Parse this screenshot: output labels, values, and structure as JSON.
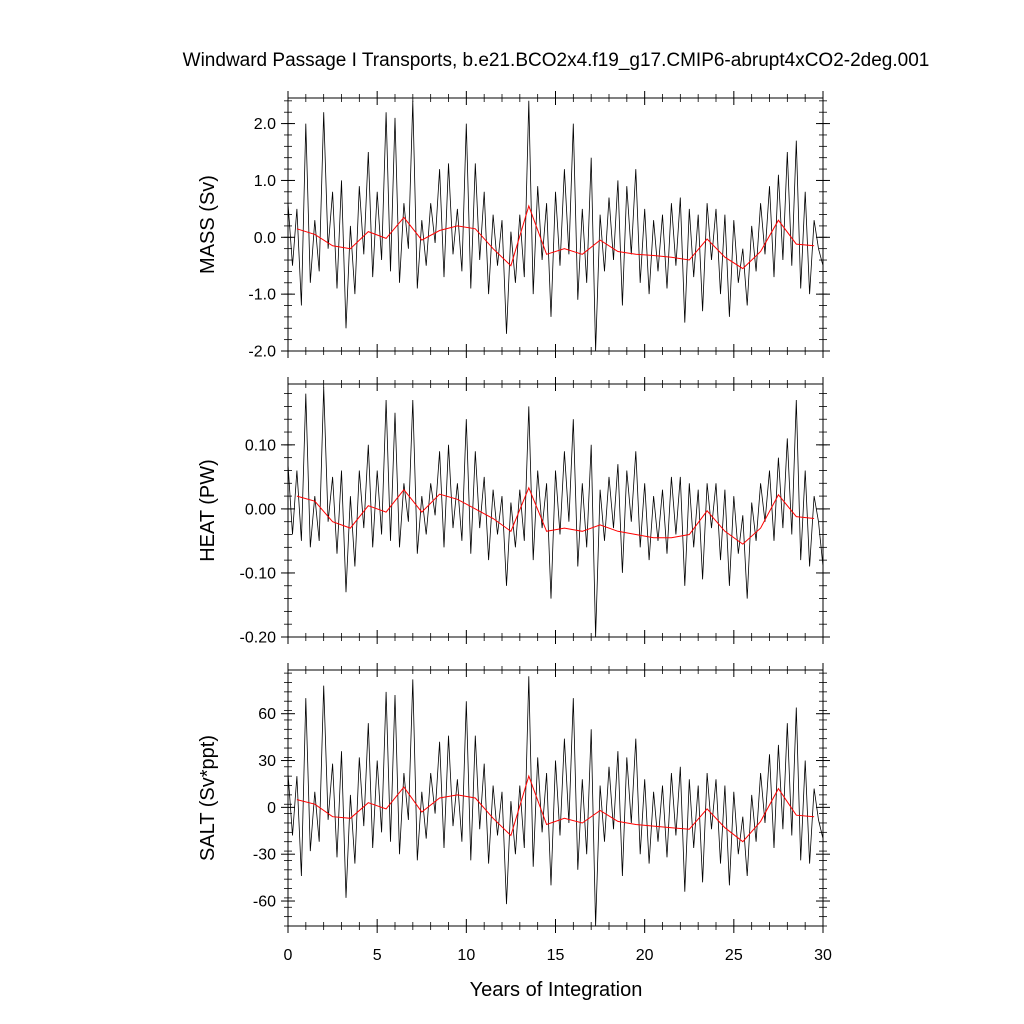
{
  "title": "Windward Passage I Transports, b.e21.BCO2x4.f19_g17.CMIP6-abrupt4xCO2-2deg.001",
  "xlabel": "Years of Integration",
  "colors": {
    "monthly": "#000000",
    "annual": "#ff0000",
    "frame": "#000000"
  },
  "chart_data": [
    {
      "type": "line",
      "ylabel": "MASS (Sv)",
      "xlim": [
        0,
        30
      ],
      "ylim": [
        -2.0,
        2.45
      ],
      "xticks": [
        0,
        5,
        10,
        15,
        20,
        25,
        30
      ],
      "xtick_labels": [
        "0",
        "5",
        "10",
        "15",
        "20",
        "25",
        "30"
      ],
      "yticks": [
        -2.0,
        -1.0,
        0.0,
        1.0,
        2.0
      ],
      "ytick_labels": [
        "-2.0",
        "-1.0",
        "0.0",
        "1.0",
        "2.0"
      ],
      "grid": false,
      "annual_x": [
        0.5,
        1.5,
        2.5,
        3.5,
        4.5,
        5.5,
        6.5,
        7.5,
        8.5,
        9.5,
        10.5,
        11.5,
        12.5,
        13.5,
        14.5,
        15.5,
        16.5,
        17.5,
        18.5,
        19.5,
        20.5,
        21.5,
        22.5,
        23.5,
        24.5,
        25.5,
        26.5,
        27.5,
        28.5,
        29.5
      ],
      "annual_y": [
        0.15,
        0.05,
        -0.15,
        -0.2,
        0.1,
        -0.02,
        0.35,
        -0.05,
        0.12,
        0.2,
        0.15,
        -0.2,
        -0.5,
        0.55,
        -0.3,
        -0.2,
        -0.3,
        -0.05,
        -0.25,
        -0.3,
        -0.32,
        -0.35,
        -0.4,
        -0.03,
        -0.35,
        -0.55,
        -0.25,
        0.3,
        -0.12,
        -0.15
      ],
      "monthly_x": [
        0.0,
        0.25,
        0.5,
        0.75,
        1.0,
        1.25,
        1.5,
        1.75,
        2.0,
        2.25,
        2.5,
        2.75,
        3.0,
        3.25,
        3.5,
        3.75,
        4.0,
        4.25,
        4.5,
        4.75,
        5.0,
        5.25,
        5.5,
        5.75,
        6.0,
        6.25,
        6.5,
        6.75,
        7.0,
        7.25,
        7.5,
        7.75,
        8.0,
        8.25,
        8.5,
        8.75,
        9.0,
        9.25,
        9.5,
        9.75,
        10.0,
        10.25,
        10.5,
        10.75,
        11.0,
        11.25,
        11.5,
        11.75,
        12.0,
        12.25,
        12.5,
        12.75,
        13.0,
        13.25,
        13.5,
        13.75,
        14.0,
        14.25,
        14.5,
        14.75,
        15.0,
        15.25,
        15.5,
        15.75,
        16.0,
        16.25,
        16.5,
        16.75,
        17.0,
        17.25,
        17.5,
        17.75,
        18.0,
        18.25,
        18.5,
        18.75,
        19.0,
        19.25,
        19.5,
        19.75,
        20.0,
        20.25,
        20.5,
        20.75,
        21.0,
        21.25,
        21.5,
        21.75,
        22.0,
        22.25,
        22.5,
        22.75,
        23.0,
        23.25,
        23.5,
        23.75,
        24.0,
        24.25,
        24.5,
        24.75,
        25.0,
        25.25,
        25.5,
        25.75,
        26.0,
        26.25,
        26.5,
        26.75,
        27.0,
        27.25,
        27.5,
        27.75,
        28.0,
        28.25,
        28.5,
        28.75,
        29.0,
        29.25,
        29.5,
        29.75,
        30.0
      ],
      "monthly_y": [
        0.6,
        -0.5,
        0.5,
        -1.2,
        2.0,
        -0.8,
        0.3,
        -0.6,
        2.2,
        -0.2,
        0.8,
        -0.9,
        1.0,
        -1.6,
        0.2,
        -1.0,
        0.9,
        -0.3,
        1.5,
        -0.7,
        0.8,
        -0.4,
        2.2,
        -0.6,
        2.1,
        -0.8,
        0.6,
        -0.2,
        2.4,
        -0.9,
        0.3,
        -0.5,
        0.6,
        -0.1,
        1.2,
        -0.7,
        1.3,
        -0.3,
        0.5,
        -0.6,
        2.0,
        -0.9,
        1.3,
        -0.4,
        0.8,
        -1.0,
        0.4,
        -0.5,
        0.3,
        -1.7,
        0.1,
        -0.8,
        0.4,
        -0.7,
        2.4,
        -1.0,
        0.9,
        -0.4,
        0.6,
        -1.4,
        0.8,
        -0.5,
        1.2,
        -0.3,
        2.0,
        -1.1,
        0.5,
        -0.8,
        1.4,
        -2.0,
        0.4,
        -0.6,
        0.7,
        -0.4,
        1.0,
        -1.2,
        0.9,
        -0.3,
        1.2,
        -0.8,
        0.5,
        -1.0,
        0.3,
        -0.6,
        0.4,
        -0.9,
        0.6,
        -0.5,
        0.7,
        -1.5,
        0.5,
        -0.7,
        0.4,
        -1.3,
        0.6,
        -0.4,
        0.5,
        -1.0,
        0.4,
        -1.4,
        0.3,
        -0.8,
        -0.2,
        -1.2,
        0.2,
        -0.6,
        0.6,
        -0.3,
        0.9,
        -0.7,
        1.1,
        -0.4,
        1.5,
        -0.5,
        1.7,
        -0.9,
        0.8,
        -1.0,
        0.3,
        -0.2,
        -0.5
      ]
    },
    {
      "type": "line",
      "ylabel": "HEAT (PW)",
      "xlim": [
        0,
        30
      ],
      "ylim": [
        -0.2,
        0.195
      ],
      "xticks": [
        0,
        5,
        10,
        15,
        20,
        25,
        30
      ],
      "xtick_labels": [
        "0",
        "5",
        "10",
        "15",
        "20",
        "25",
        "30"
      ],
      "yticks": [
        -0.2,
        -0.1,
        0.0,
        0.1
      ],
      "ytick_labels": [
        "-0.20",
        "-0.10",
        "0.00",
        "0.10"
      ],
      "grid": false,
      "annual_x": [
        0.5,
        1.5,
        2.5,
        3.5,
        4.5,
        5.5,
        6.5,
        7.5,
        8.5,
        9.5,
        10.5,
        11.5,
        12.5,
        13.5,
        14.5,
        15.5,
        16.5,
        17.5,
        18.5,
        19.5,
        20.5,
        21.5,
        22.5,
        23.5,
        24.5,
        25.5,
        26.5,
        27.5,
        28.5,
        29.5
      ],
      "annual_y": [
        0.02,
        0.012,
        -0.02,
        -0.03,
        0.005,
        -0.005,
        0.03,
        -0.005,
        0.023,
        0.015,
        0.0,
        -0.015,
        -0.035,
        0.033,
        -0.035,
        -0.03,
        -0.035,
        -0.025,
        -0.035,
        -0.04,
        -0.045,
        -0.045,
        -0.04,
        -0.003,
        -0.035,
        -0.055,
        -0.03,
        0.022,
        -0.012,
        -0.015
      ],
      "monthly_x": [
        0.0,
        0.25,
        0.5,
        0.75,
        1.0,
        1.25,
        1.5,
        1.75,
        2.0,
        2.25,
        2.5,
        2.75,
        3.0,
        3.25,
        3.5,
        3.75,
        4.0,
        4.25,
        4.5,
        4.75,
        5.0,
        5.25,
        5.5,
        5.75,
        6.0,
        6.25,
        6.5,
        6.75,
        7.0,
        7.25,
        7.5,
        7.75,
        8.0,
        8.25,
        8.5,
        8.75,
        9.0,
        9.25,
        9.5,
        9.75,
        10.0,
        10.25,
        10.5,
        10.75,
        11.0,
        11.25,
        11.5,
        11.75,
        12.0,
        12.25,
        12.5,
        12.75,
        13.0,
        13.25,
        13.5,
        13.75,
        14.0,
        14.25,
        14.5,
        14.75,
        15.0,
        15.25,
        15.5,
        15.75,
        16.0,
        16.25,
        16.5,
        16.75,
        17.0,
        17.25,
        17.5,
        17.75,
        18.0,
        18.25,
        18.5,
        18.75,
        19.0,
        19.25,
        19.5,
        19.75,
        20.0,
        20.25,
        20.5,
        20.75,
        21.0,
        21.25,
        21.5,
        21.75,
        22.0,
        22.25,
        22.5,
        22.75,
        23.0,
        23.25,
        23.5,
        23.75,
        24.0,
        24.25,
        24.5,
        24.75,
        25.0,
        25.25,
        25.5,
        25.75,
        26.0,
        26.25,
        26.5,
        26.75,
        27.0,
        27.25,
        27.5,
        27.75,
        28.0,
        28.25,
        28.5,
        28.75,
        29.0,
        29.25,
        29.5,
        29.75,
        30.0
      ],
      "monthly_y": [
        0.07,
        -0.04,
        0.06,
        -0.05,
        0.18,
        -0.06,
        0.02,
        -0.05,
        0.19,
        -0.02,
        0.05,
        -0.07,
        0.06,
        -0.13,
        0.02,
        -0.09,
        0.06,
        -0.03,
        0.1,
        -0.06,
        0.06,
        -0.04,
        0.17,
        -0.05,
        0.15,
        -0.06,
        0.04,
        -0.02,
        0.17,
        -0.07,
        0.02,
        -0.04,
        0.04,
        -0.01,
        0.09,
        -0.06,
        0.1,
        -0.03,
        0.04,
        -0.05,
        0.14,
        -0.07,
        0.09,
        -0.03,
        0.05,
        -0.08,
        0.03,
        -0.04,
        0.02,
        -0.12,
        0.01,
        -0.06,
        0.03,
        -0.05,
        0.16,
        -0.08,
        0.06,
        -0.03,
        0.04,
        -0.14,
        0.06,
        -0.04,
        0.09,
        -0.02,
        0.14,
        -0.09,
        0.04,
        -0.06,
        0.1,
        -0.2,
        0.03,
        -0.05,
        0.05,
        -0.03,
        0.07,
        -0.1,
        0.06,
        -0.02,
        0.09,
        -0.06,
        0.04,
        -0.08,
        0.02,
        -0.05,
        0.03,
        -0.07,
        0.05,
        -0.04,
        0.05,
        -0.12,
        0.04,
        -0.06,
        0.03,
        -0.11,
        0.04,
        -0.03,
        0.04,
        -0.08,
        0.03,
        -0.12,
        0.02,
        -0.07,
        -0.01,
        -0.14,
        0.01,
        -0.05,
        0.04,
        -0.02,
        0.06,
        -0.05,
        0.08,
        -0.03,
        0.11,
        -0.04,
        0.17,
        -0.08,
        0.06,
        -0.09,
        0.02,
        -0.02,
        -0.09
      ]
    },
    {
      "type": "line",
      "ylabel": "SALT (Sv*ppt)",
      "xlim": [
        0,
        30
      ],
      "ylim": [
        -76,
        88
      ],
      "xticks": [
        0,
        5,
        10,
        15,
        20,
        25,
        30
      ],
      "xtick_labels": [
        "0",
        "5",
        "10",
        "15",
        "20",
        "25",
        "30"
      ],
      "yticks": [
        -60,
        -30,
        0,
        30,
        60
      ],
      "ytick_labels": [
        "-60",
        "-30",
        "0",
        "30",
        "60"
      ],
      "grid": false,
      "annual_x": [
        0.5,
        1.5,
        2.5,
        3.5,
        4.5,
        5.5,
        6.5,
        7.5,
        8.5,
        9.5,
        10.5,
        11.5,
        12.5,
        13.5,
        14.5,
        15.5,
        16.5,
        17.5,
        18.5,
        19.5,
        20.5,
        21.5,
        22.5,
        23.5,
        24.5,
        25.5,
        26.5,
        27.5,
        28.5,
        29.5
      ],
      "annual_y": [
        5,
        2,
        -6,
        -7,
        3,
        -1,
        13,
        -3,
        6,
        8,
        6,
        -7,
        -18,
        20,
        -11,
        -7,
        -10,
        -2,
        -9,
        -11,
        -12,
        -13,
        -14,
        -1,
        -13,
        -22,
        -9,
        12,
        -5,
        -6
      ],
      "monthly_x": [
        0.0,
        0.25,
        0.5,
        0.75,
        1.0,
        1.25,
        1.5,
        1.75,
        2.0,
        2.25,
        2.5,
        2.75,
        3.0,
        3.25,
        3.5,
        3.75,
        4.0,
        4.25,
        4.5,
        4.75,
        5.0,
        5.25,
        5.5,
        5.75,
        6.0,
        6.25,
        6.5,
        6.75,
        7.0,
        7.25,
        7.5,
        7.75,
        8.0,
        8.25,
        8.5,
        8.75,
        9.0,
        9.25,
        9.5,
        9.75,
        10.0,
        10.25,
        10.5,
        10.75,
        11.0,
        11.25,
        11.5,
        11.75,
        12.0,
        12.25,
        12.5,
        12.75,
        13.0,
        13.25,
        13.5,
        13.75,
        14.0,
        14.25,
        14.5,
        14.75,
        15.0,
        15.25,
        15.5,
        15.75,
        16.0,
        16.25,
        16.5,
        16.75,
        17.0,
        17.25,
        17.5,
        17.75,
        18.0,
        18.25,
        18.5,
        18.75,
        19.0,
        19.25,
        19.5,
        19.75,
        20.0,
        20.25,
        20.5,
        20.75,
        21.0,
        21.25,
        21.5,
        21.75,
        22.0,
        22.25,
        22.5,
        22.75,
        23.0,
        23.25,
        23.5,
        23.75,
        24.0,
        24.25,
        24.5,
        24.75,
        25.0,
        25.25,
        25.5,
        25.75,
        26.0,
        26.25,
        26.5,
        26.75,
        27.0,
        27.25,
        27.5,
        27.75,
        28.0,
        28.25,
        28.5,
        28.75,
        29.0,
        29.25,
        29.5,
        29.75,
        30.0
      ],
      "monthly_y": [
        22,
        -18,
        20,
        -44,
        70,
        -28,
        10,
        -22,
        78,
        -8,
        28,
        -32,
        36,
        -58,
        8,
        -36,
        32,
        -12,
        54,
        -26,
        30,
        -16,
        74,
        -22,
        72,
        -30,
        22,
        -8,
        82,
        -34,
        10,
        -20,
        22,
        -4,
        42,
        -26,
        46,
        -12,
        18,
        -22,
        68,
        -34,
        46,
        -14,
        28,
        -36,
        14,
        -18,
        10,
        -62,
        4,
        -30,
        14,
        -26,
        84,
        -38,
        32,
        -16,
        22,
        -50,
        30,
        -18,
        44,
        -10,
        70,
        -40,
        18,
        -30,
        50,
        -76,
        14,
        -22,
        26,
        -14,
        36,
        -44,
        32,
        -10,
        44,
        -30,
        18,
        -36,
        10,
        -22,
        14,
        -32,
        22,
        -18,
        26,
        -54,
        18,
        -26,
        14,
        -48,
        22,
        -14,
        18,
        -36,
        14,
        -50,
        10,
        -30,
        -6,
        -44,
        8,
        -22,
        22,
        -10,
        34,
        -26,
        40,
        -14,
        54,
        -18,
        64,
        -34,
        30,
        -36,
        12,
        -8,
        -20
      ]
    }
  ]
}
